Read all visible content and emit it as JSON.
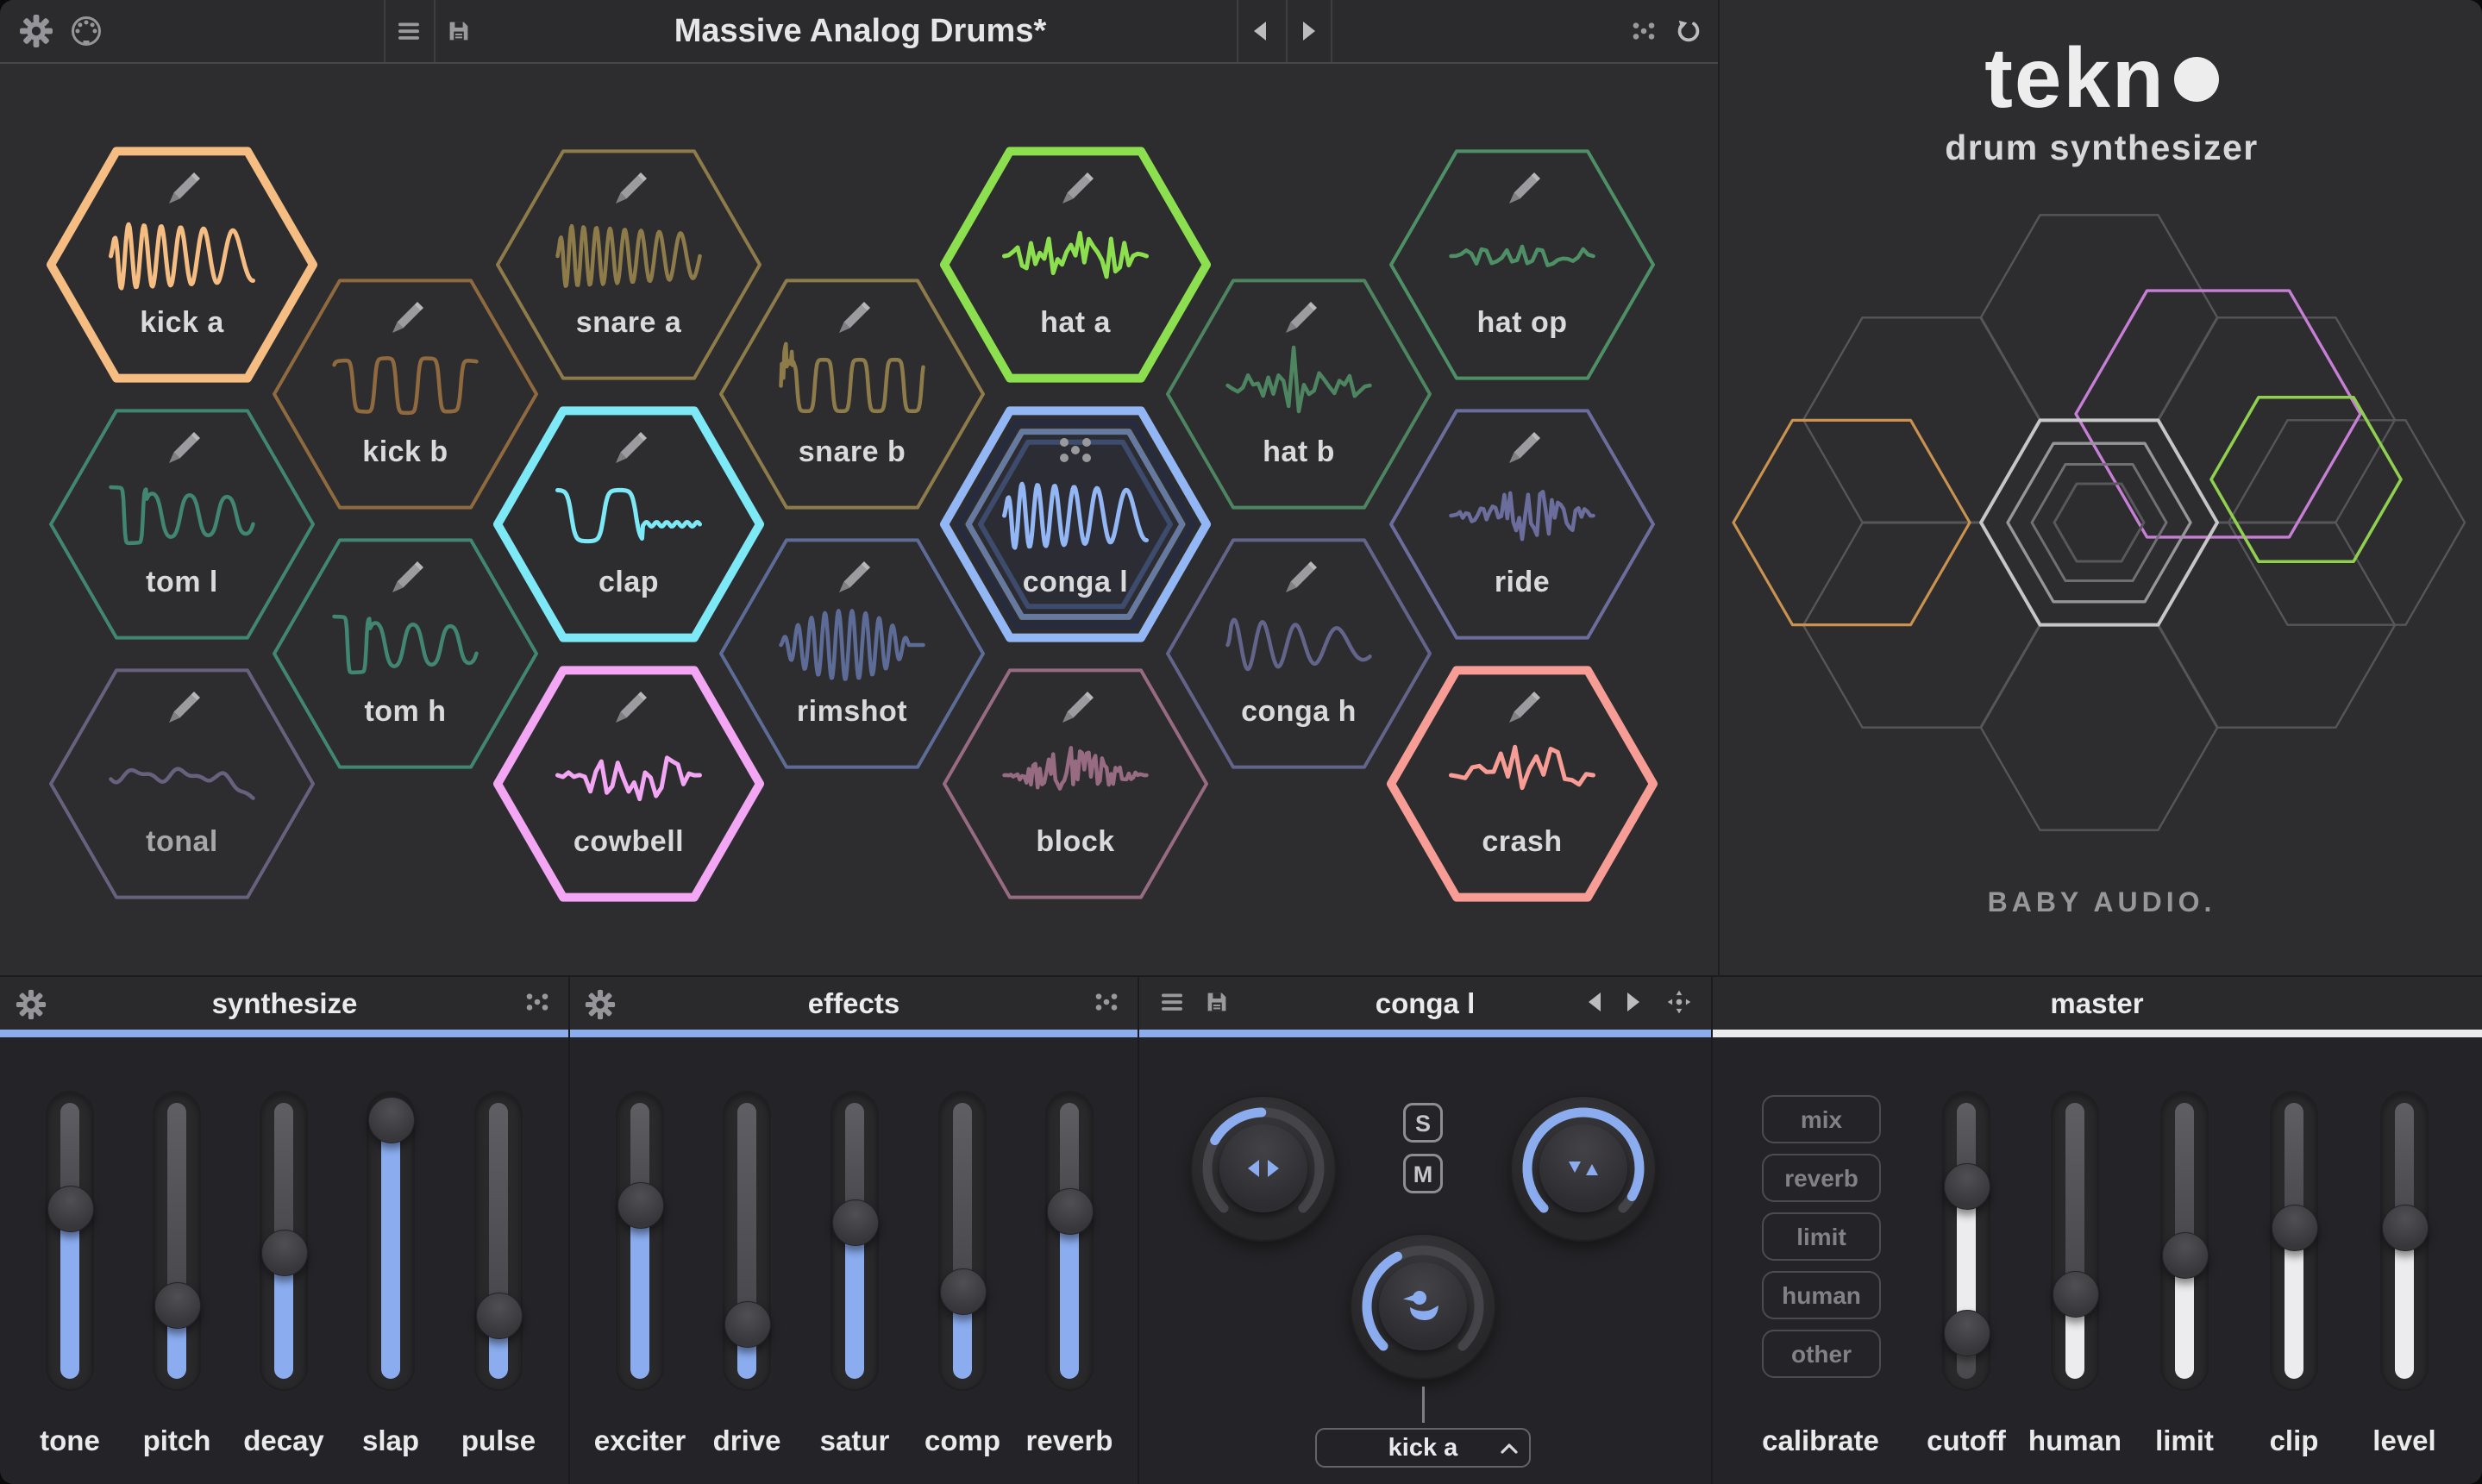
{
  "window": {
    "title": "Massive Analog Drums*"
  },
  "colors": {
    "accent_blue": "#8badf0",
    "accent_white": "#ececee",
    "background": "#2d2c2f",
    "label_light": "#dadadc",
    "label_dim": "#a7a7aa"
  },
  "top_bar": {
    "icons": [
      "settings-gear-icon",
      "midi-din-icon",
      "menu-icon",
      "save-icon",
      "prev-arrow-icon",
      "next-arrow-icon",
      "randomize-dice-icon",
      "reset-icon"
    ]
  },
  "brand": {
    "logo_text": "tekn",
    "logo_dot": "o",
    "logo_subtitle": "drum synthesizer",
    "byline": "BABY AUDIO.",
    "deco_colors": {
      "orange": "#c9924f",
      "purple": "#c77fd6",
      "green": "#8fd14f",
      "gray": "#56565a"
    }
  },
  "pads": [
    {
      "id": "kick-a",
      "label": "kick a",
      "color": "#f6bd82",
      "thick": true,
      "selected": false,
      "wave": "sine-decay",
      "col": 0,
      "row": 0
    },
    {
      "id": "snare-a",
      "label": "snare a",
      "color": "#8d7c4a",
      "thick": false,
      "selected": false,
      "wave": "sine-decay-tight",
      "col": 2,
      "row": 0
    },
    {
      "id": "hat-a",
      "label": "hat a",
      "color": "#8ce04f",
      "thick": true,
      "selected": false,
      "wave": "noise",
      "col": 4,
      "row": 0
    },
    {
      "id": "hat-op",
      "label": "hat op",
      "color": "#4e9066",
      "thick": false,
      "selected": false,
      "wave": "noise-small",
      "col": 6,
      "row": 0
    },
    {
      "id": "kick-b",
      "label": "kick b",
      "color": "#8f6a3e",
      "thick": false,
      "selected": false,
      "wave": "square",
      "col": 1,
      "row": 1
    },
    {
      "id": "snare-b",
      "label": "snare b",
      "color": "#8d7c4a",
      "thick": false,
      "selected": false,
      "wave": "square-spike",
      "col": 3,
      "row": 1
    },
    {
      "id": "hat-b",
      "label": "hat b",
      "color": "#4d8560",
      "thick": false,
      "selected": false,
      "wave": "noise-spike",
      "col": 5,
      "row": 1
    },
    {
      "id": "tom-l",
      "label": "tom l",
      "color": "#418573",
      "thick": false,
      "selected": false,
      "wave": "step-sine",
      "col": 0,
      "row": 2
    },
    {
      "id": "clap",
      "label": "clap",
      "color": "#7de9f6",
      "thick": true,
      "selected": false,
      "wave": "clap",
      "col": 2,
      "row": 2
    },
    {
      "id": "conga-l",
      "label": "conga l",
      "color": "#93b7f5",
      "thick": true,
      "selected": true,
      "wave": "sine-decay",
      "col": 4,
      "row": 2
    },
    {
      "id": "ride",
      "label": "ride",
      "color": "#6b6d9c",
      "thick": false,
      "selected": false,
      "wave": "noise-dense",
      "col": 6,
      "row": 2
    },
    {
      "id": "tom-h",
      "label": "tom h",
      "color": "#418573",
      "thick": false,
      "selected": false,
      "wave": "step-sine",
      "col": 1,
      "row": 3
    },
    {
      "id": "rimshot",
      "label": "rimshot",
      "color": "#5d6c96",
      "thick": false,
      "selected": false,
      "wave": "dense-sine",
      "col": 3,
      "row": 3
    },
    {
      "id": "conga-h",
      "label": "conga h",
      "color": "#62648a",
      "thick": false,
      "selected": false,
      "wave": "gentle-sine",
      "col": 5,
      "row": 3
    },
    {
      "id": "tonal",
      "label": "tonal",
      "color": "#68617e",
      "thick": false,
      "selected": false,
      "wave": "gentle",
      "col": 0,
      "row": 4,
      "dim_label": true
    },
    {
      "id": "cowbell",
      "label": "cowbell",
      "color": "#f2a6f4",
      "thick": true,
      "selected": false,
      "wave": "noise-mid",
      "col": 2,
      "row": 4
    },
    {
      "id": "block",
      "label": "block",
      "color": "#976b82",
      "thick": false,
      "selected": false,
      "wave": "burst",
      "col": 4,
      "row": 4
    },
    {
      "id": "crash",
      "label": "crash",
      "color": "#f89d96",
      "thick": true,
      "selected": false,
      "wave": "noise-big",
      "col": 6,
      "row": 4
    }
  ],
  "panels": {
    "synthesize": {
      "title": "synthesize",
      "sliders": [
        {
          "label": "tone",
          "value": 0.62
        },
        {
          "label": "pitch",
          "value": 0.27
        },
        {
          "label": "decay",
          "value": 0.46
        },
        {
          "label": "slap",
          "value": 0.94
        },
        {
          "label": "pulse",
          "value": 0.23
        }
      ]
    },
    "effects": {
      "title": "effects",
      "sliders": [
        {
          "label": "exciter",
          "value": 0.63
        },
        {
          "label": "drive",
          "value": 0.2
        },
        {
          "label": "satur",
          "value": 0.57
        },
        {
          "label": "comp",
          "value": 0.32
        },
        {
          "label": "reverb",
          "value": 0.61
        }
      ]
    },
    "pad": {
      "title": "conga l",
      "solo_label": "S",
      "mute_label": "M",
      "source_label": "kick a",
      "knobs": [
        {
          "id": "pan",
          "icon": "pan-triangles-icon",
          "arc_start": 300,
          "arc_end": 358
        },
        {
          "id": "tune",
          "icon": "tune-triangles-icon",
          "arc_start": 225,
          "arc_end": 480
        },
        {
          "id": "duck",
          "icon": "duck-icon",
          "arc_start": 225,
          "arc_end": 333
        }
      ]
    },
    "master": {
      "title": "master",
      "buttons": [
        "mix",
        "reverb",
        "limit",
        "human",
        "other"
      ],
      "buttons_label": "calibrate",
      "sliders": [
        {
          "label": "cutoff",
          "type": "range",
          "low": 0.17,
          "high": 0.7
        },
        {
          "label": "human",
          "value": 0.31
        },
        {
          "label": "limit",
          "value": 0.45
        },
        {
          "label": "clip",
          "value": 0.55
        },
        {
          "label": "level",
          "value": 0.55
        }
      ]
    }
  }
}
